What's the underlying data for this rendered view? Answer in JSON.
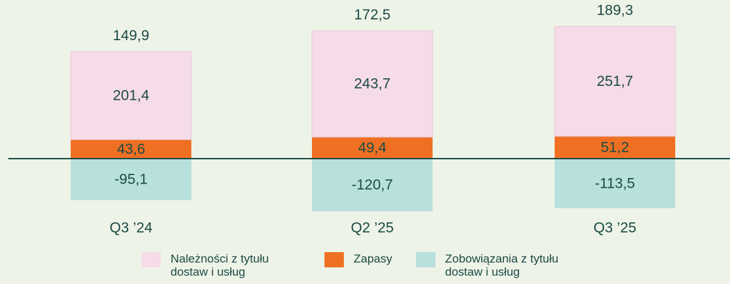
{
  "chart_data": {
    "type": "stacked_bar",
    "categories": [
      "Q3 ’24",
      "Q2 ’25",
      "Q3 ’25"
    ],
    "series": [
      {
        "name": "Zapasy",
        "color": "#f07023",
        "values": [
          43.6,
          49.4,
          51.2
        ],
        "value_labels": [
          "43,6",
          "49,4",
          "51,2"
        ]
      },
      {
        "name": "Należności z tytułu dostaw i usług",
        "color": "#f6dbe9",
        "values": [
          201.4,
          243.7,
          251.7
        ],
        "value_labels": [
          "201,4",
          "243,7",
          "251,7"
        ]
      },
      {
        "name": "Zobowiązania z tytułu dostaw i usług",
        "color": "#b8e0dc",
        "values": [
          -95.1,
          -120.7,
          -113.5
        ],
        "value_labels": [
          "-95,1",
          "-120,7",
          "-113,5"
        ]
      }
    ],
    "totals": [
      149.9,
      172.5,
      189.3
    ],
    "total_labels": [
      "149,9",
      "172,5",
      "189,3"
    ],
    "legend_order": [
      1,
      0,
      2
    ]
  }
}
